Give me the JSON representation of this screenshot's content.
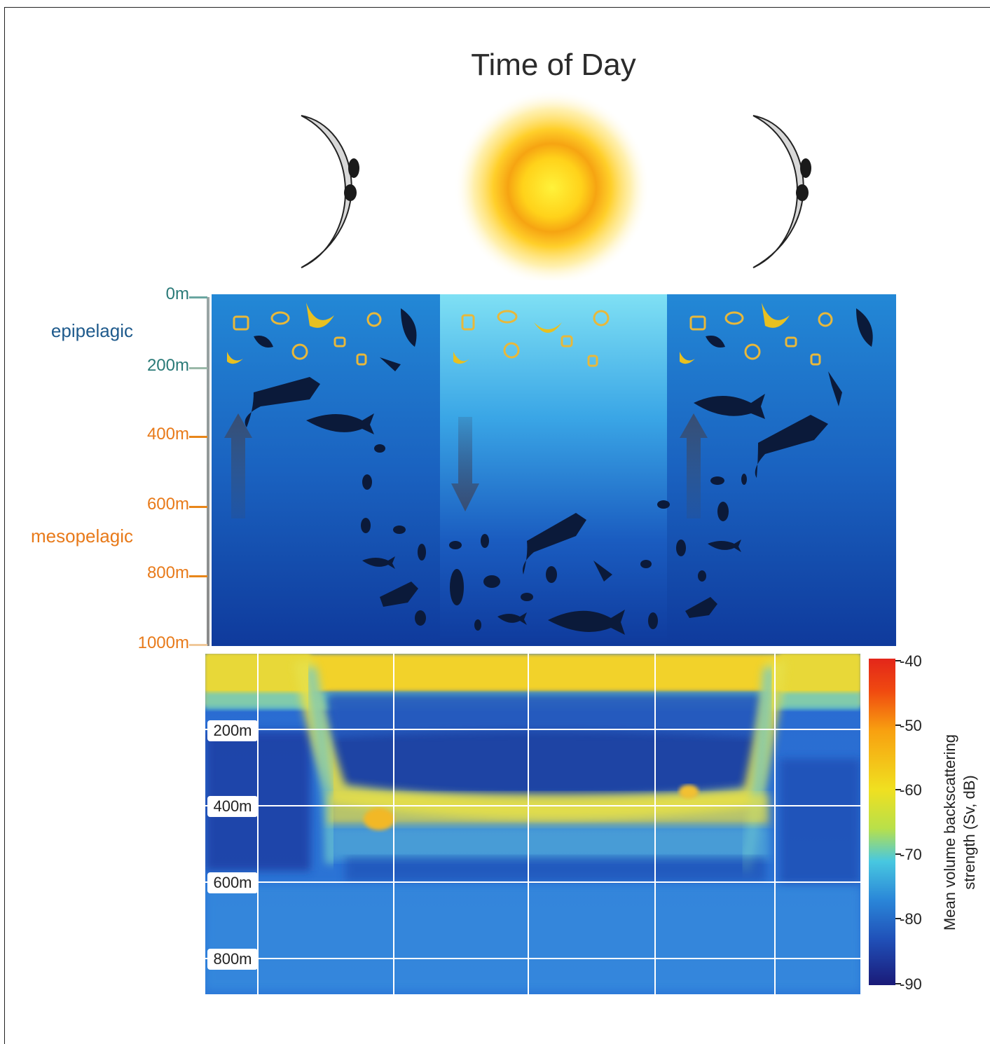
{
  "title": "Time of Day",
  "sky": {
    "phases": [
      {
        "name": "night",
        "icon": "moon-icon"
      },
      {
        "name": "day",
        "icon": "sun-icon"
      },
      {
        "name": "night",
        "icon": "moon-icon"
      }
    ]
  },
  "zones": {
    "epipelagic": "epipelagic",
    "mesopelagic": "mesopelagic"
  },
  "depth_scale": [
    "0m",
    "200m",
    "400m",
    "600m",
    "800m",
    "1000m"
  ],
  "echogram": {
    "depth_labels": [
      "200m",
      "400m",
      "600m",
      "800m"
    ]
  },
  "colorbar": {
    "title_line1": "Mean volume backscattering",
    "title_line2": "strength (Sv, dB)",
    "ticks": [
      "-40",
      "-50",
      "-60",
      "-70",
      "-80",
      "-90"
    ]
  },
  "colors": {
    "epipelagic_text": "#1e5a8c",
    "mesopelagic_text": "#e87a1a",
    "ocean_top": "#1f7fd0",
    "ocean_bottom": "#0f3a9c"
  }
}
